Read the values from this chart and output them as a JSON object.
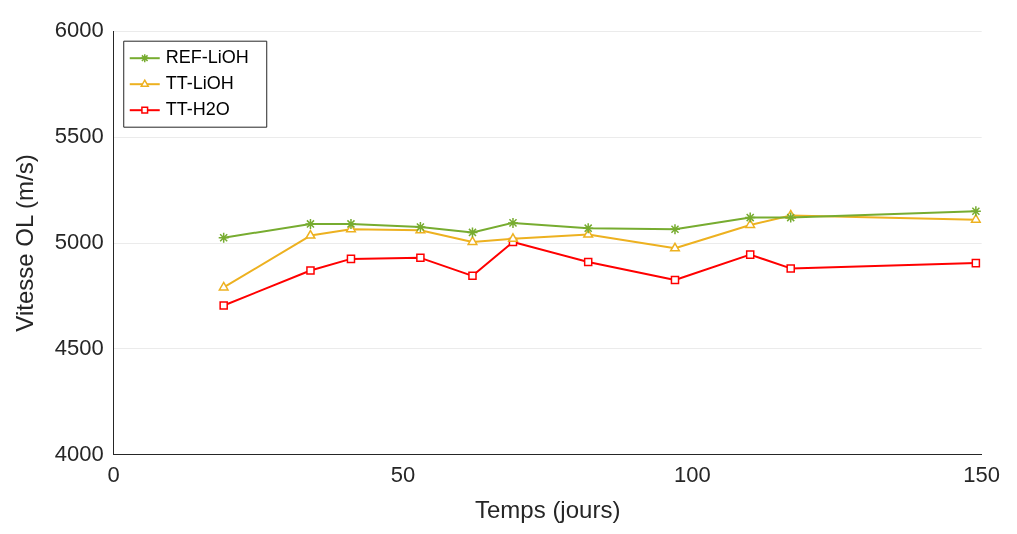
{
  "chart_data": {
    "type": "line",
    "xlabel": "Temps (jours)",
    "ylabel": "Vitesse OL (m/s)",
    "x": [
      19,
      34,
      41,
      53,
      62,
      69,
      82,
      97,
      110,
      117,
      149
    ],
    "series": [
      {
        "name": "REF-LiOH",
        "color": "#77ac30",
        "marker": "cross",
        "values": [
          5025,
          5090,
          5090,
          5075,
          5050,
          5095,
          5070,
          5065,
          5120,
          5120,
          5150
        ]
      },
      {
        "name": "TT-LiOH",
        "color": "#edb120",
        "marker": "triangle",
        "values": [
          4790,
          5035,
          5065,
          5060,
          5005,
          5020,
          5040,
          4975,
          5085,
          5130,
          5110
        ]
      },
      {
        "name": "TT-H2O",
        "color": "#ff0000",
        "marker": "square",
        "values": [
          4705,
          4870,
          4925,
          4930,
          4845,
          5005,
          4910,
          4825,
          4945,
          4880,
          4905
        ]
      }
    ],
    "xlim": [
      0,
      150
    ],
    "xticks": [
      0,
      50,
      100,
      150
    ],
    "ylim": [
      4000,
      6000
    ],
    "yticks": [
      4000,
      4500,
      5000,
      5500,
      6000
    ],
    "grid": "y",
    "legend": "top left"
  }
}
